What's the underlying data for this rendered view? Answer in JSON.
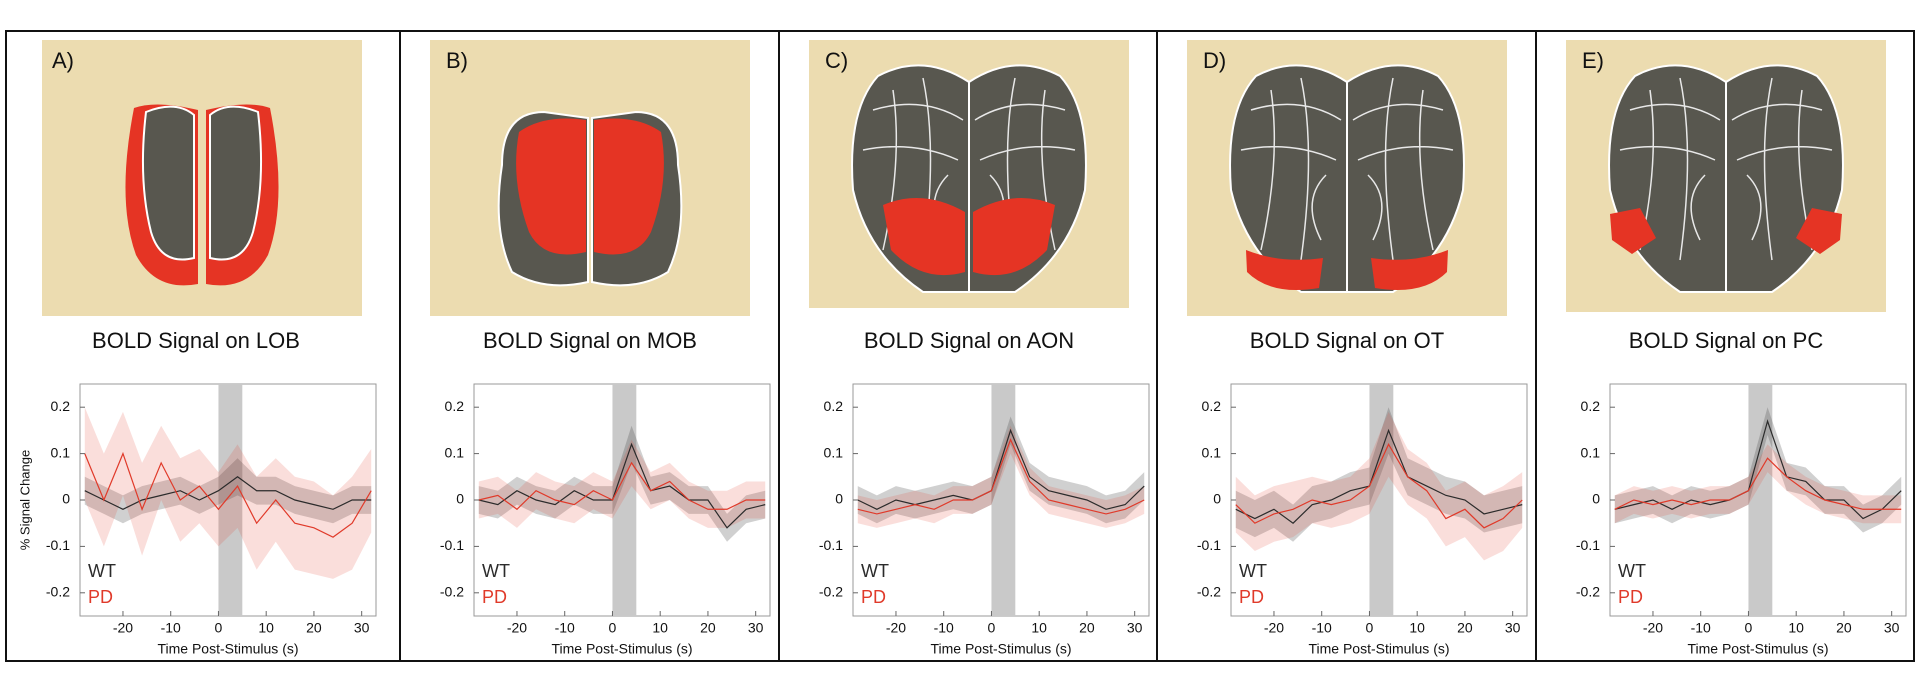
{
  "chart_data": [
    {
      "type": "line",
      "label": "A)",
      "title": "BOLD Signal on LOB",
      "ylabel": "% Signal Change",
      "xlabel": "Time Post-Stimulus (s)",
      "x": [
        -28,
        -24,
        -20,
        -16,
        -12,
        -8,
        -4,
        0,
        4,
        8,
        12,
        16,
        20,
        24,
        28,
        32
      ],
      "xlim": [
        -29,
        33
      ],
      "ylim": [
        -0.25,
        0.25
      ],
      "xticks": [
        -20,
        -10,
        0,
        10,
        20,
        30
      ],
      "yticks": [
        -0.2,
        -0.1,
        0,
        0.1,
        0.2
      ],
      "stimulus": [
        0,
        5
      ],
      "series": [
        {
          "name": "WT",
          "color": "#2b2b2b",
          "values": [
            0.02,
            0,
            -0.02,
            0,
            0.01,
            0.02,
            0,
            0.02,
            0.05,
            0.02,
            0.02,
            0,
            -0.01,
            -0.02,
            0,
            0
          ],
          "error": [
            0.03,
            0.03,
            0.03,
            0.03,
            0.03,
            0.03,
            0.03,
            0.03,
            0.04,
            0.03,
            0.03,
            0.03,
            0.03,
            0.03,
            0.03,
            0.03
          ]
        },
        {
          "name": "PD",
          "color": "#e03a2a",
          "values": [
            0.1,
            0,
            0.1,
            -0.02,
            0.08,
            0,
            0.03,
            -0.02,
            0.03,
            -0.05,
            0,
            -0.05,
            -0.06,
            -0.08,
            -0.05,
            0.02
          ],
          "error": [
            0.1,
            0.1,
            0.09,
            0.1,
            0.08,
            0.09,
            0.08,
            0.08,
            0.09,
            0.1,
            0.09,
            0.1,
            0.1,
            0.09,
            0.1,
            0.09
          ]
        }
      ]
    },
    {
      "type": "line",
      "label": "B)",
      "title": "BOLD Signal on MOB",
      "xlabel": "Time Post-Stimulus (s)",
      "x": [
        -28,
        -24,
        -20,
        -16,
        -12,
        -8,
        -4,
        0,
        4,
        8,
        12,
        16,
        20,
        24,
        28,
        32
      ],
      "xlim": [
        -29,
        33
      ],
      "ylim": [
        -0.25,
        0.25
      ],
      "xticks": [
        -20,
        -10,
        0,
        10,
        20,
        30
      ],
      "yticks": [
        -0.2,
        -0.1,
        0,
        0.1,
        0.2
      ],
      "stimulus": [
        0,
        5
      ],
      "series": [
        {
          "name": "WT",
          "color": "#2b2b2b",
          "values": [
            0,
            -0.01,
            0.02,
            0,
            -0.01,
            0.02,
            0,
            0,
            0.12,
            0.02,
            0.03,
            0,
            0,
            -0.06,
            -0.02,
            -0.01
          ],
          "error": [
            0.03,
            0.03,
            0.03,
            0.03,
            0.03,
            0.03,
            0.03,
            0.03,
            0.04,
            0.03,
            0.03,
            0.03,
            0.03,
            0.03,
            0.03,
            0.03
          ]
        },
        {
          "name": "PD",
          "color": "#e03a2a",
          "values": [
            0,
            0.01,
            -0.02,
            0.02,
            0,
            -0.01,
            0.02,
            0,
            0.08,
            0.02,
            0.04,
            0,
            -0.02,
            -0.02,
            0,
            0
          ],
          "error": [
            0.04,
            0.04,
            0.04,
            0.04,
            0.04,
            0.04,
            0.04,
            0.04,
            0.05,
            0.04,
            0.04,
            0.04,
            0.04,
            0.04,
            0.04,
            0.04
          ]
        }
      ]
    },
    {
      "type": "line",
      "label": "C)",
      "title": "BOLD Signal on AON",
      "xlabel": "Time Post-Stimulus (s)",
      "x": [
        -28,
        -24,
        -20,
        -16,
        -12,
        -8,
        -4,
        0,
        4,
        8,
        12,
        16,
        20,
        24,
        28,
        32
      ],
      "xlim": [
        -29,
        33
      ],
      "ylim": [
        -0.25,
        0.25
      ],
      "xticks": [
        -20,
        -10,
        0,
        10,
        20,
        30
      ],
      "yticks": [
        -0.2,
        -0.1,
        0,
        0.1,
        0.2
      ],
      "stimulus": [
        0,
        5
      ],
      "series": [
        {
          "name": "WT",
          "color": "#2b2b2b",
          "values": [
            0,
            -0.02,
            0,
            -0.01,
            0,
            0.01,
            0,
            0.02,
            0.15,
            0.05,
            0.02,
            0.01,
            0,
            -0.02,
            -0.01,
            0.03
          ],
          "error": [
            0.03,
            0.03,
            0.03,
            0.03,
            0.03,
            0.03,
            0.03,
            0.03,
            0.03,
            0.03,
            0.03,
            0.03,
            0.03,
            0.03,
            0.03,
            0.03
          ]
        },
        {
          "name": "PD",
          "color": "#e03a2a",
          "values": [
            -0.02,
            -0.03,
            -0.02,
            -0.01,
            -0.02,
            0,
            0,
            0.02,
            0.13,
            0.04,
            0,
            -0.01,
            -0.02,
            -0.03,
            -0.02,
            0
          ],
          "error": [
            0.03,
            0.03,
            0.03,
            0.03,
            0.03,
            0.03,
            0.03,
            0.03,
            0.03,
            0.03,
            0.03,
            0.03,
            0.03,
            0.03,
            0.03,
            0.03
          ]
        }
      ]
    },
    {
      "type": "line",
      "label": "D)",
      "title": "BOLD Signal on OT",
      "xlabel": "Time Post-Stimulus (s)",
      "x": [
        -28,
        -24,
        -20,
        -16,
        -12,
        -8,
        -4,
        0,
        4,
        8,
        12,
        16,
        20,
        24,
        28,
        32
      ],
      "xlim": [
        -29,
        33
      ],
      "ylim": [
        -0.25,
        0.25
      ],
      "xticks": [
        -20,
        -10,
        0,
        10,
        20,
        30
      ],
      "yticks": [
        -0.2,
        -0.1,
        0,
        0.1,
        0.2
      ],
      "stimulus": [
        0,
        5
      ],
      "series": [
        {
          "name": "WT",
          "color": "#2b2b2b",
          "values": [
            -0.02,
            -0.04,
            -0.02,
            -0.05,
            -0.01,
            0,
            0.02,
            0.03,
            0.15,
            0.05,
            0.03,
            0.01,
            0,
            -0.03,
            -0.02,
            -0.01
          ],
          "error": [
            0.04,
            0.04,
            0.04,
            0.04,
            0.04,
            0.04,
            0.04,
            0.04,
            0.05,
            0.04,
            0.04,
            0.04,
            0.04,
            0.04,
            0.04,
            0.04
          ]
        },
        {
          "name": "PD",
          "color": "#e03a2a",
          "values": [
            -0.01,
            -0.05,
            -0.03,
            -0.02,
            0,
            -0.01,
            0,
            0.03,
            0.12,
            0.05,
            0.02,
            -0.04,
            -0.02,
            -0.06,
            -0.04,
            0
          ],
          "error": [
            0.06,
            0.06,
            0.06,
            0.06,
            0.05,
            0.05,
            0.05,
            0.06,
            0.07,
            0.06,
            0.06,
            0.06,
            0.06,
            0.07,
            0.07,
            0.06
          ]
        }
      ]
    },
    {
      "type": "line",
      "label": "E)",
      "title": "BOLD Signal on PC",
      "xlabel": "Time Post-Stimulus (s)",
      "x": [
        -28,
        -24,
        -20,
        -16,
        -12,
        -8,
        -4,
        0,
        4,
        8,
        12,
        16,
        20,
        24,
        28,
        32
      ],
      "xlim": [
        -29,
        33
      ],
      "ylim": [
        -0.25,
        0.25
      ],
      "xticks": [
        -20,
        -10,
        0,
        10,
        20,
        30
      ],
      "yticks": [
        -0.2,
        -0.1,
        0,
        0.1,
        0.2
      ],
      "stimulus": [
        0,
        5
      ],
      "series": [
        {
          "name": "WT",
          "color": "#2b2b2b",
          "values": [
            -0.02,
            -0.01,
            0,
            -0.02,
            0,
            -0.01,
            0,
            0.02,
            0.17,
            0.05,
            0.04,
            0,
            0,
            -0.04,
            -0.02,
            0.02
          ],
          "error": [
            0.03,
            0.03,
            0.03,
            0.03,
            0.03,
            0.03,
            0.03,
            0.03,
            0.03,
            0.03,
            0.03,
            0.03,
            0.03,
            0.03,
            0.03,
            0.03
          ]
        },
        {
          "name": "PD",
          "color": "#e03a2a",
          "values": [
            -0.02,
            0,
            -0.01,
            0,
            -0.01,
            0,
            0,
            0.02,
            0.09,
            0.05,
            0.02,
            0,
            -0.01,
            -0.02,
            -0.02,
            -0.02
          ],
          "error": [
            0.03,
            0.03,
            0.03,
            0.03,
            0.03,
            0.03,
            0.03,
            0.03,
            0.03,
            0.03,
            0.03,
            0.03,
            0.03,
            0.03,
            0.03,
            0.03
          ]
        }
      ]
    }
  ]
}
